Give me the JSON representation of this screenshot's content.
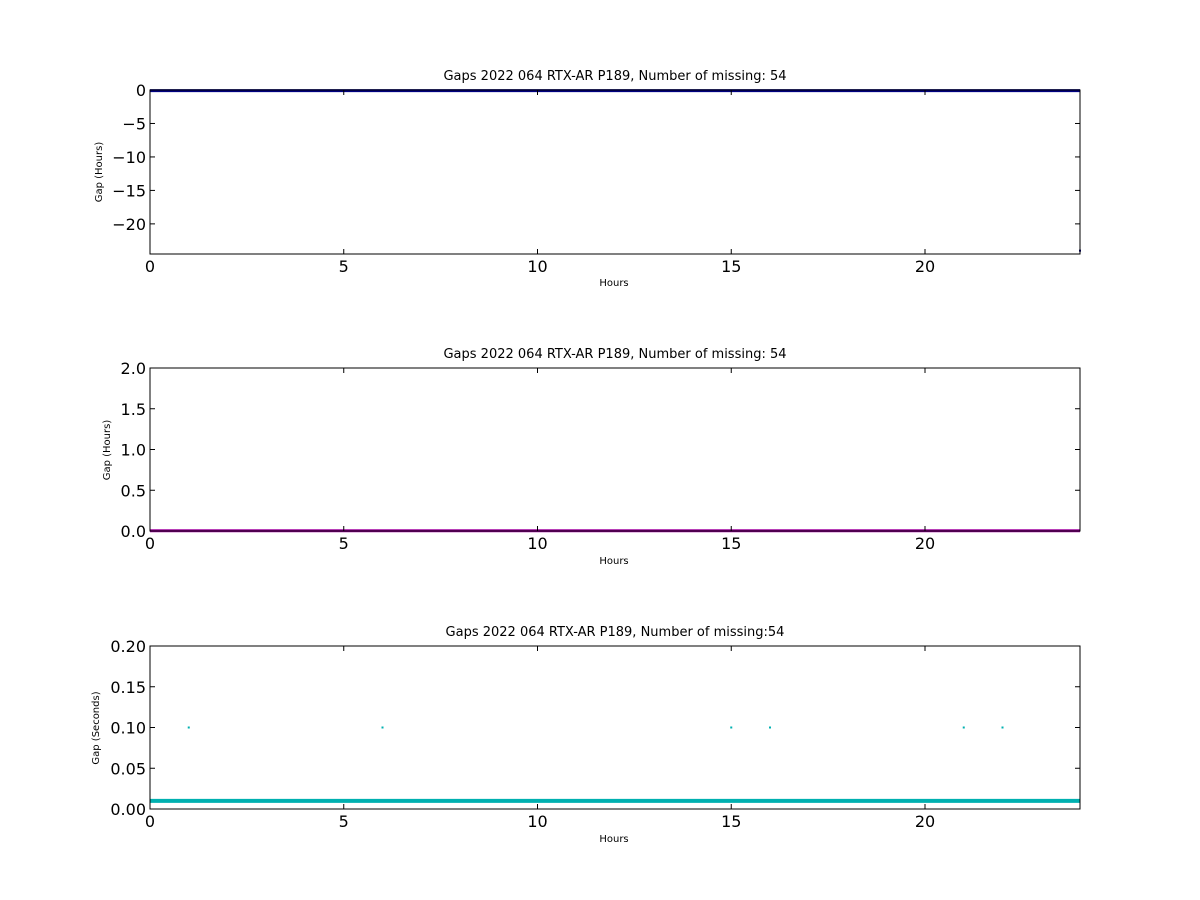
{
  "chart_data": [
    {
      "type": "line",
      "title": "Gaps 2022 064 RTX-AR  P189, Number of missing: 54",
      "xlabel": "Hours",
      "ylabel": "Gap (Hours)",
      "xlim": [
        0,
        24
      ],
      "ylim": [
        -24.5,
        0
      ],
      "xticks": [
        "0",
        "5",
        "10",
        "15",
        "20"
      ],
      "xtick_values": [
        0,
        5,
        10,
        15,
        20
      ],
      "yticks": [
        "0",
        "−5",
        "−10",
        "−15",
        "−20"
      ],
      "ytick_values": [
        0,
        -5,
        -10,
        -15,
        -20
      ],
      "grid": false,
      "series": [
        {
          "color": "#000080",
          "style": "line",
          "x": [
            0,
            24
          ],
          "y": [
            -0.1,
            -0.1
          ]
        },
        {
          "color": "#000080",
          "style": "point",
          "x": [
            24
          ],
          "y": [
            -24
          ]
        }
      ]
    },
    {
      "type": "line",
      "title": "Gaps 2022 064 RTX-AR  P189, Number of missing: 54",
      "xlabel": "Hours",
      "ylabel": "Gap (Hours)",
      "xlim": [
        0,
        24
      ],
      "ylim": [
        0,
        2
      ],
      "xticks": [
        "0",
        "5",
        "10",
        "15",
        "20"
      ],
      "xtick_values": [
        0,
        5,
        10,
        15,
        20
      ],
      "yticks": [
        "0.0",
        "0.5",
        "1.0",
        "1.5",
        "2.0"
      ],
      "ytick_values": [
        0,
        0.5,
        1,
        1.5,
        2
      ],
      "grid": false,
      "series": [
        {
          "color": "#a000a0",
          "style": "line",
          "x": [
            0,
            24
          ],
          "y": [
            0.0028,
            0.0028
          ]
        }
      ]
    },
    {
      "type": "scatter",
      "title": "Gaps 2022 064 RTX-AR  P189, Number of missing:54",
      "xlabel": "Hours",
      "ylabel": "Gap (Seconds)",
      "xlim": [
        0,
        24
      ],
      "ylim": [
        0,
        0.2
      ],
      "xticks": [
        "0",
        "5",
        "10",
        "15",
        "20"
      ],
      "xtick_values": [
        0,
        5,
        10,
        15,
        20
      ],
      "yticks": [
        "0.00",
        "0.05",
        "0.10",
        "0.15",
        "0.20"
      ],
      "ytick_values": [
        0,
        0.05,
        0.1,
        0.15,
        0.2
      ],
      "grid": false,
      "series": [
        {
          "color": "#00b0b0",
          "style": "line",
          "x": [
            0,
            24
          ],
          "y": [
            0.01,
            0.01
          ]
        },
        {
          "color": "#00b0b0",
          "style": "point",
          "x": [
            1,
            6,
            15,
            16,
            21,
            22
          ],
          "y": [
            0.1,
            0.1,
            0.1,
            0.1,
            0.1,
            0.1
          ]
        }
      ]
    }
  ]
}
